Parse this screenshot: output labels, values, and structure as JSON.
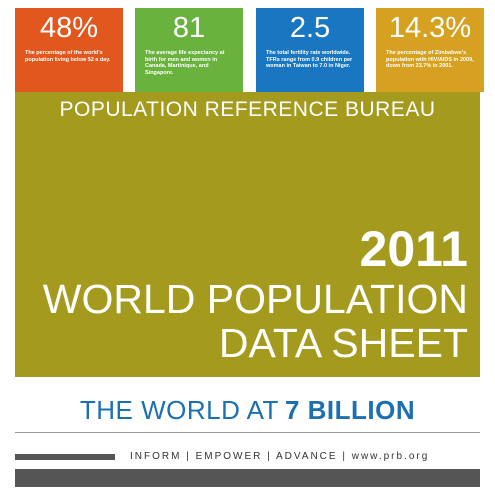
{
  "stats": [
    {
      "value": "48%",
      "text": "The percentage of the world's population living below $2 a day."
    },
    {
      "value": "81",
      "text": "The average life expectancy at birth for men and women in Canada, Martinique, and Singapore."
    },
    {
      "value": "2.5",
      "text": "The total fertility rate worldwide. TFRs range from 0.9 children per woman in Taiwan to 7.0 in Niger."
    },
    {
      "value": "14.3%",
      "text": "The percentage of Zimbabwe's population with HIV/AIDS in 2009, down from 23.7% in 2001."
    }
  ],
  "cover": {
    "publisher": "POPULATION REFERENCE BUREAU",
    "year": "2011",
    "title_line1": "WORLD POPULATION",
    "title_line2": "DATA SHEET"
  },
  "tagline": {
    "lead": "THE WORLD AT",
    "emphasis": "7 BILLION"
  },
  "footer": {
    "motto": "INFORM | EMPOWER | ADVANCE | www.prb.org"
  }
}
